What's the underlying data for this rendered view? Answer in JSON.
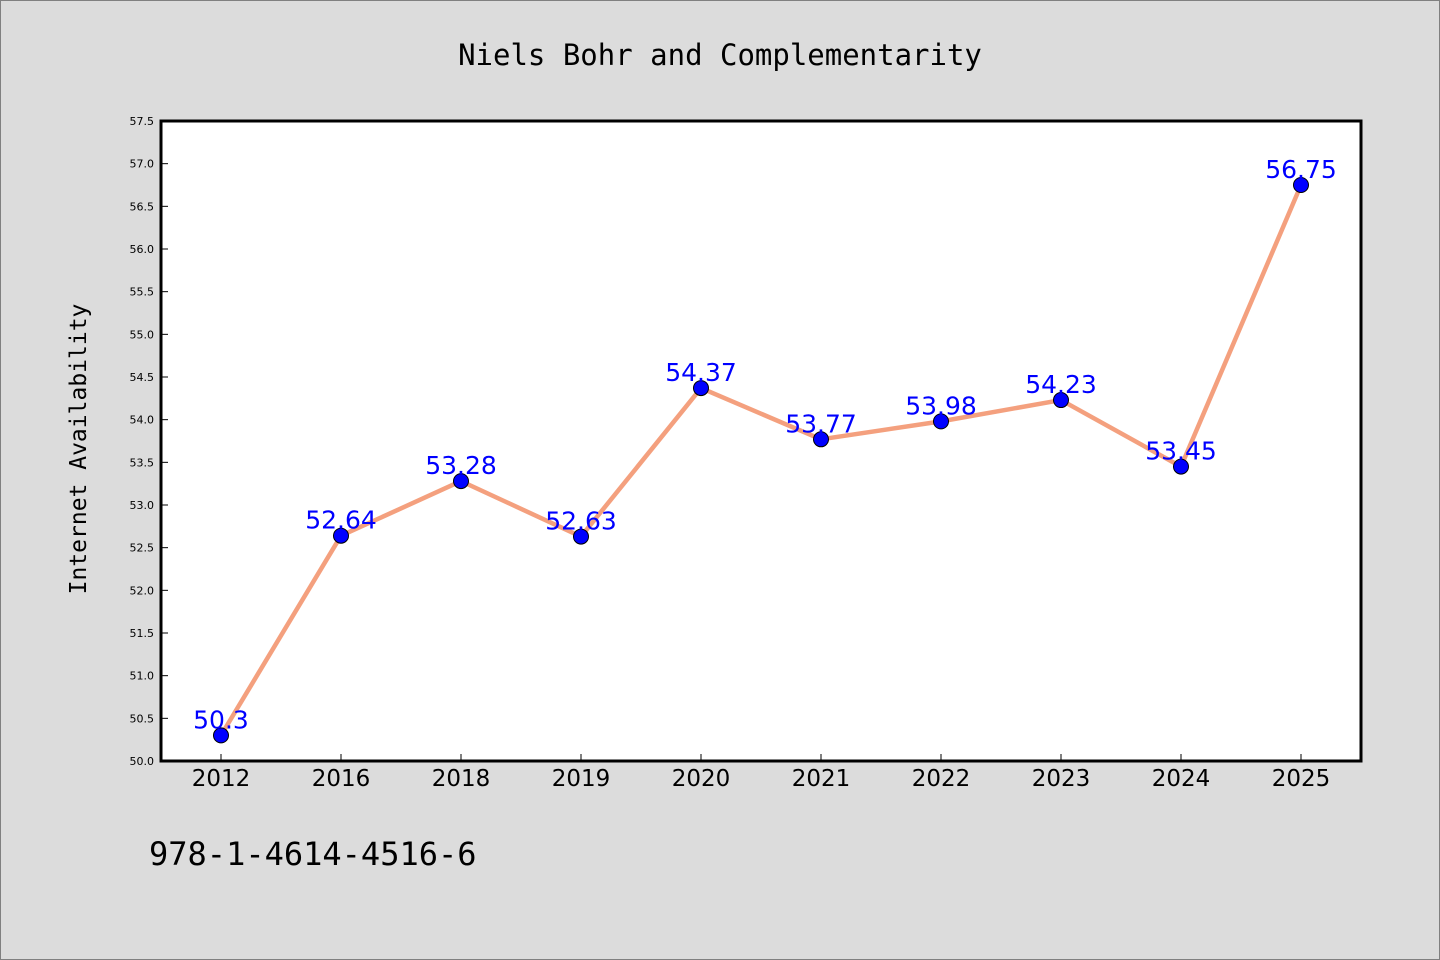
{
  "chart_data": {
    "type": "line",
    "title": "Niels Bohr and Complementarity",
    "xlabel": "",
    "ylabel": "Internet Availability",
    "categories": [
      "2012",
      "2016",
      "2018",
      "2019",
      "2020",
      "2021",
      "2022",
      "2023",
      "2024",
      "2025"
    ],
    "series": [
      {
        "values": [
          50.3,
          52.64,
          53.28,
          52.63,
          54.37,
          53.77,
          53.98,
          54.23,
          53.45,
          56.75
        ],
        "line_color": "#f4a07e",
        "marker_color": "#0000ff"
      }
    ],
    "data_labels": [
      "50.3",
      "52.64",
      "53.28",
      "52.63",
      "54.37",
      "53.77",
      "53.98",
      "54.23",
      "53.45",
      "56.75"
    ],
    "label_color": "#0000ff",
    "ylim": [
      50.0,
      57.5
    ],
    "yticks": [
      "50.0",
      "50.5",
      "51.0",
      "51.5",
      "52.0",
      "52.5",
      "53.0",
      "53.5",
      "54.0",
      "54.5",
      "55.0",
      "55.5",
      "56.0",
      "56.5",
      "57.0",
      "57.5"
    ],
    "grid": false,
    "legend": "none"
  },
  "footer": {
    "caption": "978-1-4614-4516-6"
  },
  "colors": {
    "figure_background": "#dcdcdc",
    "plot_background": "#ffffff"
  }
}
